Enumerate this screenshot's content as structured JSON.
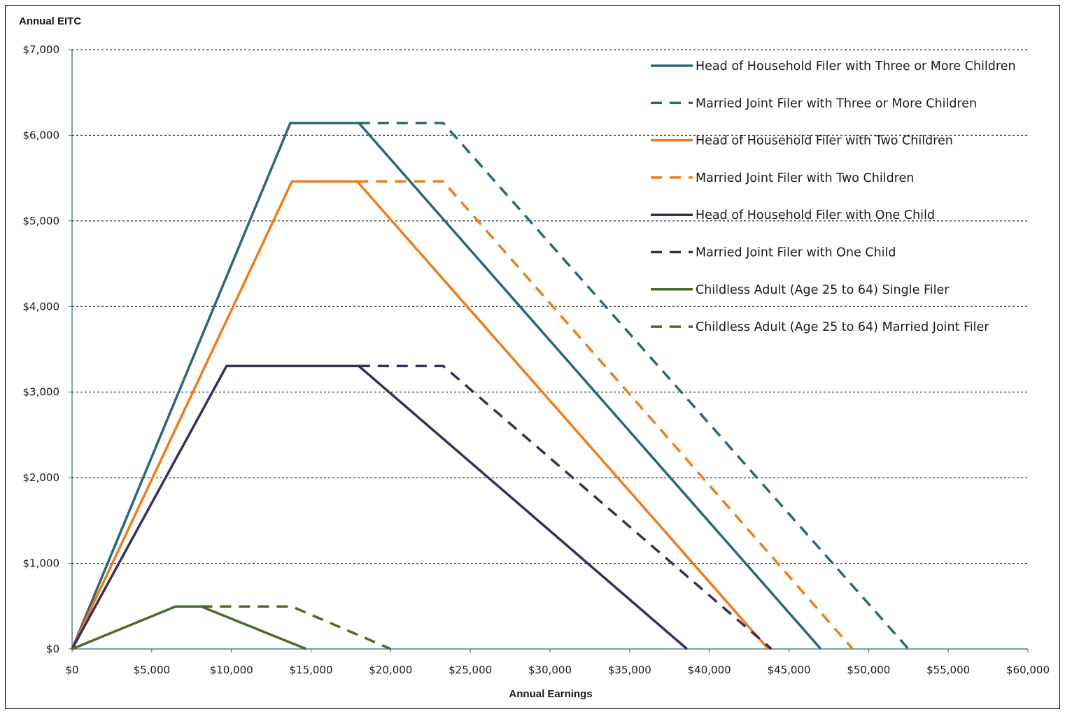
{
  "chart_data": {
    "type": "line",
    "ylabel": "Annual EITC",
    "xlabel": "Annual Earnings",
    "xlim": [
      0,
      60000
    ],
    "ylim": [
      0,
      7000
    ],
    "x_ticks": [
      "$0",
      "$5,000",
      "$10,000",
      "$15,000",
      "$20,000",
      "$25,000",
      "$30,000",
      "$35,000",
      "$40,000",
      "$45,000",
      "$50,000",
      "$55,000",
      "$60,000"
    ],
    "y_ticks": [
      "$0",
      "$1,000",
      "$2,000",
      "$3,000",
      "$4,000",
      "$5,000",
      "$6,000",
      "$7,000"
    ],
    "grid": "horizontal dashed",
    "legend_position": "top-right",
    "series": [
      {
        "name": "Head of Household Filer with Three or More Children",
        "color": "#2b6774",
        "dash": false,
        "points": [
          [
            0,
            0
          ],
          [
            13700,
            6143
          ],
          [
            18000,
            6143
          ],
          [
            47000,
            0
          ]
        ]
      },
      {
        "name": "Married Joint Filer with Three or More Children",
        "color": "#2b6774",
        "dash": true,
        "points": [
          [
            18000,
            6143
          ],
          [
            23300,
            6143
          ],
          [
            52500,
            0
          ]
        ]
      },
      {
        "name": "Head of Household Filer with Two Children",
        "color": "#ee7c1b",
        "dash": false,
        "points": [
          [
            0,
            0
          ],
          [
            13800,
            5460
          ],
          [
            17900,
            5460
          ],
          [
            43700,
            0
          ]
        ]
      },
      {
        "name": "Married Joint Filer with Two Children",
        "color": "#ee7c1b",
        "dash": true,
        "points": [
          [
            17900,
            5460
          ],
          [
            23300,
            5460
          ],
          [
            49000,
            0
          ]
        ]
      },
      {
        "name": "Head of Household Filer with One Child",
        "color": "#3e2c58",
        "dash": false,
        "points": [
          [
            0,
            0
          ],
          [
            9700,
            3305
          ],
          [
            18000,
            3305
          ],
          [
            38600,
            0
          ]
        ]
      },
      {
        "name": "Married Joint Filer with One Child",
        "color": "#3e2c58",
        "dash": true,
        "points": [
          [
            18000,
            3305
          ],
          [
            23300,
            3305
          ],
          [
            43900,
            0
          ]
        ]
      },
      {
        "name": "Childless Adult (Age 25 to 64) Single Filer",
        "color": "#4d6a2e",
        "dash": false,
        "points": [
          [
            0,
            0
          ],
          [
            6500,
            496
          ],
          [
            8100,
            496
          ],
          [
            14700,
            0
          ]
        ]
      },
      {
        "name": "Childless Adult (Age 25 to 64) Married Joint Filer",
        "color": "#4d6a2e",
        "dash": true,
        "points": [
          [
            8100,
            496
          ],
          [
            13800,
            496
          ],
          [
            20000,
            0
          ]
        ]
      }
    ]
  }
}
